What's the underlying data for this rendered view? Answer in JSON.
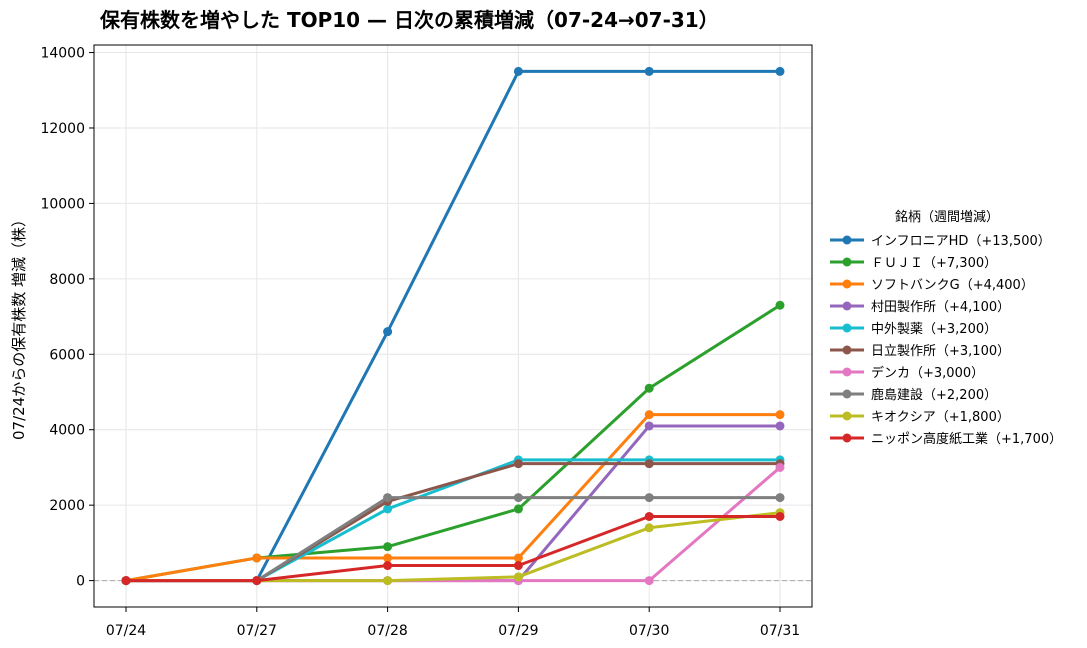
{
  "chart_data": {
    "type": "line",
    "title": "保有株数を増やした TOP10 — 日次の累積増減（07-24→07-31）",
    "xlabel": "",
    "ylabel": "07/24からの保有株数 増減（株）",
    "categories": [
      "07/24",
      "07/27",
      "07/28",
      "07/29",
      "07/30",
      "07/31"
    ],
    "ylim": [
      -700,
      14200
    ],
    "yticks": [
      0,
      2000,
      4000,
      6000,
      8000,
      10000,
      12000,
      14000
    ],
    "grid": true,
    "zero_line": true,
    "legend_title": "銘柄（週間増減）",
    "legend_position": "right",
    "series": [
      {
        "name": "インフロニアHD（+13,500）",
        "color": "#1f77b4",
        "values": [
          0,
          0,
          6600,
          13500,
          13500,
          13500
        ]
      },
      {
        "name": "ＦＵＪＩ（+7,300）",
        "color": "#2ca02c",
        "values": [
          0,
          600,
          900,
          1900,
          5100,
          7300
        ]
      },
      {
        "name": "ソフトバンクG（+4,400）",
        "color": "#ff7f0e",
        "values": [
          0,
          600,
          600,
          600,
          4400,
          4400
        ]
      },
      {
        "name": "村田製作所（+4,100）",
        "color": "#9467bd",
        "values": [
          0,
          0,
          0,
          0,
          4100,
          4100
        ]
      },
      {
        "name": "中外製薬（+3,200）",
        "color": "#17becf",
        "values": [
          0,
          0,
          1900,
          3200,
          3200,
          3200
        ]
      },
      {
        "name": "日立製作所（+3,100）",
        "color": "#8c564b",
        "values": [
          0,
          0,
          2100,
          3100,
          3100,
          3100
        ]
      },
      {
        "name": "デンカ（+3,000）",
        "color": "#e377c2",
        "values": [
          0,
          0,
          0,
          0,
          0,
          3000
        ]
      },
      {
        "name": "鹿島建設（+2,200）",
        "color": "#7f7f7f",
        "values": [
          0,
          0,
          2200,
          2200,
          2200,
          2200
        ]
      },
      {
        "name": "キオクシア（+1,800）",
        "color": "#bcbd22",
        "values": [
          0,
          0,
          0,
          100,
          1400,
          1800
        ]
      },
      {
        "name": "ニッポン高度紙工業（+1,700）",
        "color": "#d62728",
        "values": [
          0,
          0,
          400,
          400,
          1700,
          1700
        ]
      }
    ]
  }
}
